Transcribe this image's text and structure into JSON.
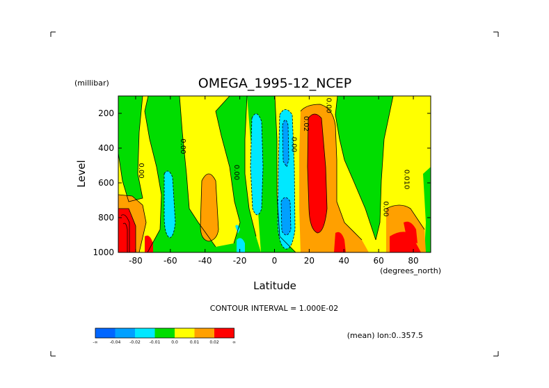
{
  "chart_data": {
    "type": "heatmap",
    "title": "OMEGA_1995-12_NCEP",
    "xlabel": "Latitude",
    "ylabel": "Level",
    "y_units": "(millibar)",
    "x_units": "(degrees_north)",
    "x_ticks": [
      -80,
      -60,
      -40,
      -20,
      0,
      20,
      40,
      60,
      80
    ],
    "x_tick_labels": [
      "-80",
      "-60",
      "-40",
      "-20",
      "0",
      "20",
      "40",
      "60",
      "80"
    ],
    "xlim": [
      -90,
      90
    ],
    "y_ticks": [
      200,
      400,
      600,
      800,
      1000
    ],
    "y_tick_labels": [
      "200",
      "400",
      "600",
      "800",
      "1000"
    ],
    "ylim": [
      100,
      1000
    ],
    "contour_interval": "CONTOUR INTERVAL = 1.000E-02",
    "note": "(mean) lon:0..357.5",
    "colorbar": {
      "bins": [
        {
          "color": "#0066ff"
        },
        {
          "color": "#00a0ff"
        },
        {
          "color": "#00e8ff"
        },
        {
          "color": "#00dd00"
        },
        {
          "color": "#ffff00"
        },
        {
          "color": "#ffa000"
        },
        {
          "color": "#ff0000"
        }
      ],
      "labels": [
        "-∞",
        "-0.04",
        "-0.02",
        "-0.01",
        "0.0",
        "0.01",
        "0.02",
        "∞"
      ]
    },
    "contour_labels": [
      {
        "text": "0.00",
        "lat": -78,
        "level": 530
      },
      {
        "text": "0.00",
        "lat": -54,
        "level": 390
      },
      {
        "text": "0.00",
        "lat": -23,
        "level": 540
      },
      {
        "text": "0.00",
        "lat": 10,
        "level": 380
      },
      {
        "text": "0.02",
        "lat": 17,
        "level": 260
      },
      {
        "text": "0.00",
        "lat": 30,
        "level": 155
      },
      {
        "text": "0.00",
        "lat": 63,
        "level": 750
      },
      {
        "text": "0.010",
        "lat": 75,
        "level": 580
      }
    ]
  }
}
